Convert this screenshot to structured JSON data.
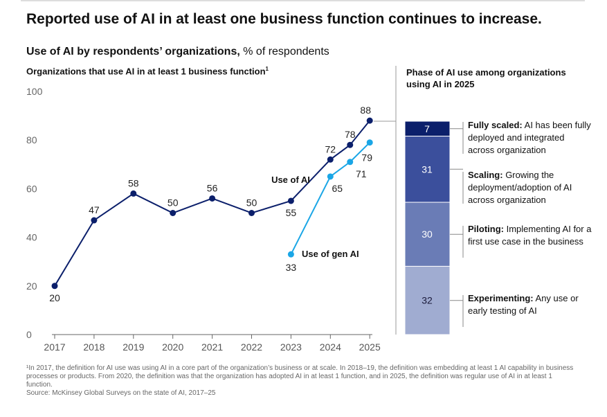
{
  "title": "Reported use of AI in at least one business function continues to increase.",
  "subtitle": {
    "bold": "Use of AI by respondents’ organizations,",
    "rest": " % of respondents"
  },
  "footnote": [
    "¹In 2017, the definition for AI use was using AI in a core part of the organization’s business or at scale. In 2018–19, the definition was embedding at least 1 AI capability in business processes or products. From 2020, the definition was that the organization has adopted AI in at least 1 function, and in 2025, the defini­tion was regular use of AI in at least 1 function.",
    "Source: McKinsey Global Surveys on the state of AI, 2017–25"
  ],
  "chart_data": [
    {
      "type": "line",
      "title": "Organizations that use AI in at least 1 business function",
      "title_footnote_mark": "1",
      "x_ticks": [
        "2017",
        "2018",
        "2019",
        "2020",
        "2021",
        "2022",
        "2023",
        "2024",
        "2025"
      ],
      "y_ticks": [
        0,
        20,
        40,
        60,
        80,
        100
      ],
      "ylim": [
        0,
        100
      ],
      "grid": false,
      "series": [
        {
          "name": "Use of AI",
          "color": "#0b1f6b",
          "x": [
            2017,
            2018,
            2019,
            2020,
            2021,
            2022,
            2023,
            2024,
            2024.5,
            2025
          ],
          "values": [
            20,
            47,
            58,
            50,
            56,
            50,
            55,
            72,
            78,
            88
          ]
        },
        {
          "name": "Use of gen AI",
          "color": "#1aa6e6",
          "x": [
            2023,
            2024,
            2024.5,
            2025
          ],
          "values": [
            33,
            65,
            71,
            79
          ]
        }
      ]
    },
    {
      "type": "bar",
      "stacked": true,
      "title": "Phase of AI use among organizations using AI in 2025",
      "segments": [
        {
          "value": 7,
          "label": "Fully scaled:",
          "desc": " AI has been fully deployed and integrat­ed across organization",
          "color": "#0b1f6b",
          "text_color": "#ffffff"
        },
        {
          "value": 31,
          "label": "Scaling:",
          "desc": " Growing the deployment/adoption of AI across organization",
          "color": "#3b4f9c",
          "text_color": "#ffffff"
        },
        {
          "value": 30,
          "label": "Piloting:",
          "desc": " Implementing AI for a first use case in the business",
          "color": "#6a7cb6",
          "text_color": "#ffffff"
        },
        {
          "value": 32,
          "label": "Experimenting:",
          "desc": " Any use or early testing of AI",
          "color": "#a0acd1",
          "text_color": "#1a1a3a"
        }
      ]
    }
  ]
}
